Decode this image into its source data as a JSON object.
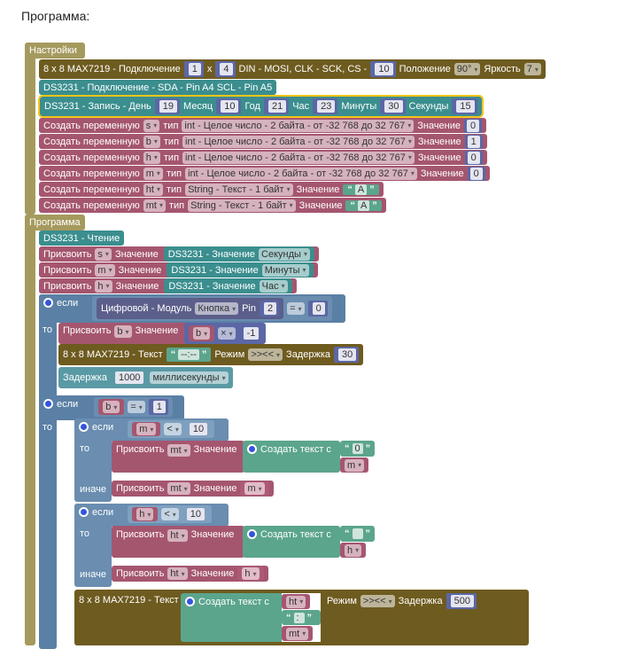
{
  "title": "Программа:",
  "settings": {
    "label": "Настройки",
    "max": {
      "label": "8 x 8 MAX7219 - Подключение",
      "a": "1",
      "x": "x",
      "b": "4",
      "pins": "DIN - MOSI, CLK - SCK, CS -",
      "cs": "10",
      "pos_label": "Положение",
      "pos": "90°",
      "bright_label": "Яркость",
      "bright": "7"
    },
    "ds_connect": "DS3231 - Подключение - SDA - Pin A4 SCL - Pin A5",
    "ds_write": {
      "label": "DS3231 - Запись - День",
      "day": "19",
      "month_label": "Месяц",
      "month": "10",
      "year_label": "Год",
      "year": "21",
      "hour_label": "Час",
      "hour": "23",
      "min_label": "Минуты",
      "min": "30",
      "sec_label": "Секунды",
      "sec": "15"
    },
    "create": "Создать переменную",
    "type_label": "тип",
    "value_label": "Значение",
    "vars": [
      {
        "name": "s",
        "type": "int - Целое число - 2 байта - от -32 768 до 32 767",
        "value": "0"
      },
      {
        "name": "b",
        "type": "int - Целое число - 2 байта - от -32 768 до 32 767",
        "value": "1"
      },
      {
        "name": "h",
        "type": "int - Целое число - 2 байта - от -32 768 до 32 767",
        "value": "0"
      },
      {
        "name": "m",
        "type": "int - Целое число - 2 байта - от -32 768 до 32 767",
        "value": "0"
      },
      {
        "name": "ht",
        "type": "String - Текст - 1 байт",
        "value": "A"
      },
      {
        "name": "mt",
        "type": "String - Текст - 1 байт",
        "value": "A"
      }
    ]
  },
  "program": {
    "label": "Программа",
    "read": "DS3231 - Чтение",
    "assign": "Присвоить",
    "value": "Значение",
    "ds_value": "DS3231 - Значение",
    "assigns": [
      {
        "var": "s",
        "src": "Секунды"
      },
      {
        "var": "m",
        "src": "Минуты"
      },
      {
        "var": "h",
        "src": "Час"
      }
    ],
    "if_label": "если",
    "then_label": "то",
    "else_label": "иначе",
    "if1": {
      "digital": "Цифровой - Модуль",
      "module": "Кнопка",
      "pin_label": "Pin",
      "pin": "2",
      "op": "=",
      "rhs": "0",
      "assign_var": "b",
      "mul_var": "b",
      "mul_op": "×",
      "mul_val": "-1",
      "text_label": "8 x 8 MAX7219 - Текст",
      "text": "--:--",
      "mode_label": "Режим",
      "mode": ">><<",
      "delay_label": "Задержка",
      "delay": "30",
      "wait_label": "Задержка",
      "wait": "1000",
      "wait_unit": "миллисекунды"
    },
    "if2": {
      "var": "b",
      "op": "=",
      "rhs": "1",
      "inner1": {
        "var": "m",
        "op": "<",
        "rhs": "10",
        "assign_var": "mt",
        "join": "Создать текст с",
        "str": "0",
        "item": "m",
        "else_var": "mt",
        "else_val": "m"
      },
      "inner2": {
        "var": "h",
        "op": "<",
        "rhs": "10",
        "assign_var": "ht",
        "join": "Создать текст с",
        "str": "",
        "item": "h",
        "else_var": "ht",
        "else_val": "h"
      },
      "show": {
        "label": "8 x 8 MAX7219 - Текст",
        "join": "Создать текст с",
        "i1": "ht",
        "i2": ":",
        "i3": "mt",
        "mode_label": "Режим",
        "mode": ">><<",
        "delay_label": "Задержка",
        "delay": "500"
      }
    }
  }
}
